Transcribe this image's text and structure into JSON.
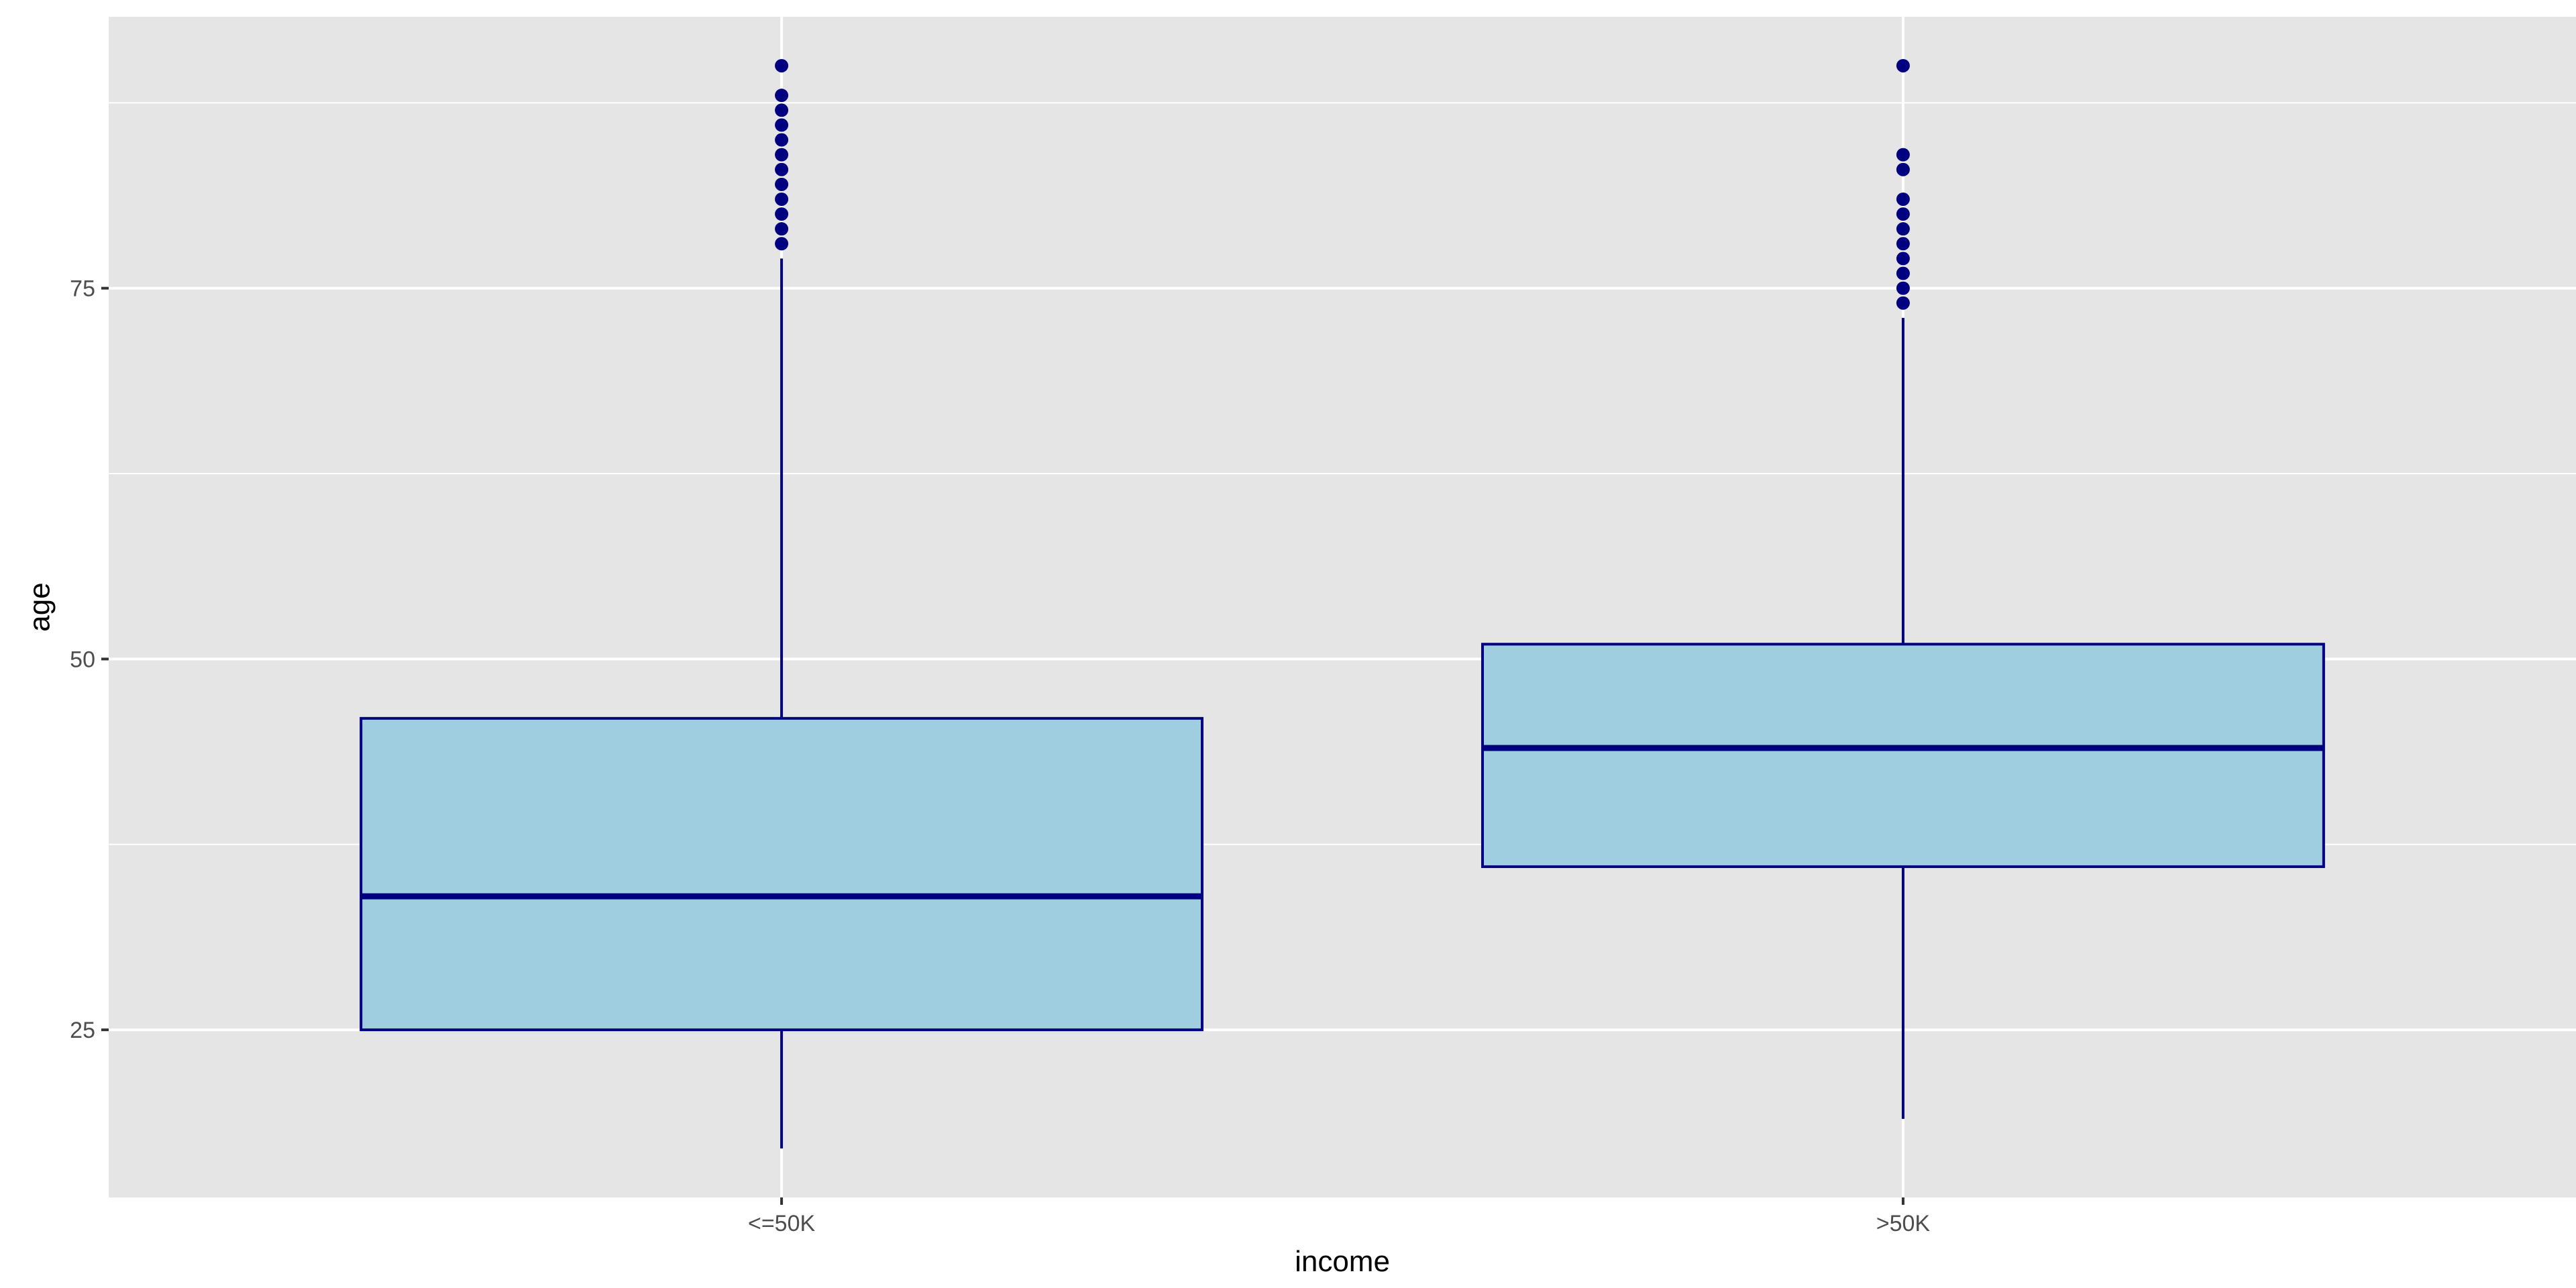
{
  "chart_data": {
    "type": "boxplot",
    "xlabel": "income",
    "ylabel": "age",
    "categories": [
      "<=50K",
      ">50K"
    ],
    "y_ticks": [
      25,
      50,
      75
    ],
    "y_tick_labels": [
      "25",
      "50",
      "75"
    ],
    "ylim": [
      13.7,
      93.3
    ],
    "grid": true,
    "legend": "none",
    "boxes": [
      {
        "category": "<=50K",
        "whisker_low": 17,
        "q1": 25,
        "median": 34,
        "q3": 46,
        "whisker_high": 77,
        "outliers": [
          78,
          79,
          80,
          81,
          82,
          83,
          84,
          85,
          86,
          87,
          88,
          90
        ]
      },
      {
        "category": ">50K",
        "whisker_low": 19,
        "q1": 36,
        "median": 44,
        "q3": 51,
        "whisker_high": 73,
        "outliers": [
          74,
          75,
          76,
          77,
          78,
          79,
          80,
          81,
          83,
          84,
          90
        ]
      }
    ],
    "colors": {
      "panel_background": "#e5e5e5",
      "grid": "#ffffff",
      "box_fill": "#9ecee0",
      "box_outline": "#000080",
      "outlier": "#000080",
      "tick_text": "#4d4d4d",
      "axis_title": "#000000"
    }
  }
}
